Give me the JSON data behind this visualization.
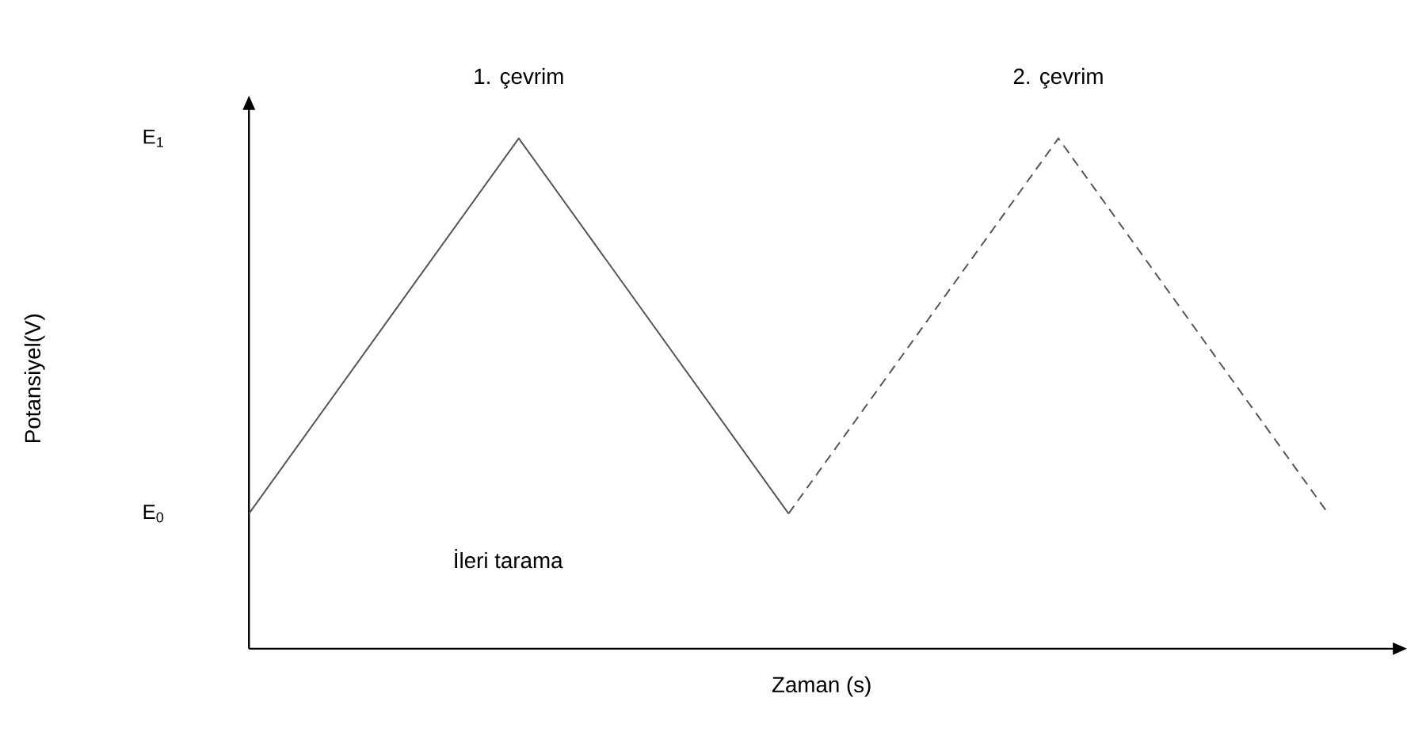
{
  "chart_data": {
    "type": "line",
    "xlabel": "Zaman (s)",
    "ylabel": "Potansiyel(V)",
    "categories": [
      null,
      null,
      null,
      null,
      null
    ],
    "series": [
      {
        "color": "#555555",
        "line_style": "solid",
        "values": [
          0,
          1,
          0,
          null,
          null
        ]
      },
      {
        "color": "#555555",
        "line_style": "dashed",
        "values": [
          null,
          null,
          0,
          1,
          0
        ]
      }
    ],
    "ylim": [
      -0.36,
      1.08
    ],
    "yticks": [
      {
        "value": 0,
        "label": "E$_{0}$"
      },
      {
        "value": 1,
        "label": "E$_{1}$"
      }
    ],
    "tick_labels": "y",
    "annotations": [
      "1. çevrim",
      "2. çevrim",
      "İleri tarama"
    ]
  }
}
